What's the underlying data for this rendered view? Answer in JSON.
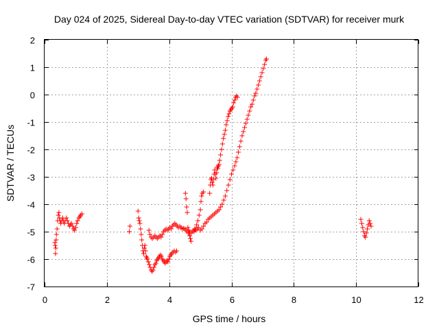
{
  "chart_data": {
    "type": "scatter",
    "title": "Day 024 of 2025, Sidereal Day-to-day VTEC variation (SDTVAR) for receiver murk",
    "xlabel": "GPS time / hours",
    "ylabel": "SDTVAR / TECUs",
    "xlim": [
      0,
      12
    ],
    "ylim": [
      -7,
      2
    ],
    "x_ticks": [
      0,
      2,
      4,
      6,
      8,
      10,
      12
    ],
    "y_ticks": [
      -7,
      -6,
      -5,
      -4,
      -3,
      -2,
      -1,
      0,
      1,
      2
    ],
    "x_tick_labels": [
      "0",
      "2",
      "4",
      "6",
      "8",
      "10",
      "12"
    ],
    "y_tick_labels": [
      "-7",
      "-6",
      "-5",
      "-4",
      "-3",
      "-2",
      "-1",
      "0",
      "1",
      "2"
    ],
    "grid": true,
    "marker": "+",
    "series": [
      {
        "name": "SDTVAR",
        "color": "#ff0000",
        "points": [
          [
            0.33,
            -5.4
          ],
          [
            0.34,
            -5.5
          ],
          [
            0.35,
            -5.8
          ],
          [
            0.36,
            -5.6
          ],
          [
            0.37,
            -5.3
          ],
          [
            0.38,
            -5.1
          ],
          [
            0.4,
            -4.9
          ],
          [
            0.42,
            -4.6
          ],
          [
            0.44,
            -4.4
          ],
          [
            0.46,
            -4.3
          ],
          [
            0.48,
            -4.5
          ],
          [
            0.5,
            -4.6
          ],
          [
            0.52,
            -4.7
          ],
          [
            0.55,
            -4.6
          ],
          [
            0.58,
            -4.5
          ],
          [
            0.6,
            -4.6
          ],
          [
            0.63,
            -4.7
          ],
          [
            0.66,
            -4.6
          ],
          [
            0.7,
            -4.5
          ],
          [
            0.73,
            -4.6
          ],
          [
            0.76,
            -4.7
          ],
          [
            0.8,
            -4.8
          ],
          [
            0.83,
            -4.75
          ],
          [
            0.86,
            -4.7
          ],
          [
            0.9,
            -4.8
          ],
          [
            0.93,
            -4.9
          ],
          [
            0.96,
            -4.95
          ],
          [
            1.0,
            -4.85
          ],
          [
            1.03,
            -4.7
          ],
          [
            1.06,
            -4.6
          ],
          [
            1.1,
            -4.5
          ],
          [
            1.13,
            -4.45
          ],
          [
            1.16,
            -4.4
          ],
          [
            1.2,
            -4.35
          ],
          [
            2.72,
            -5.0
          ],
          [
            2.74,
            -4.8
          ],
          [
            3.0,
            -4.25
          ],
          [
            3.02,
            -4.5
          ],
          [
            3.04,
            -4.6
          ],
          [
            3.06,
            -4.7
          ],
          [
            3.08,
            -4.9
          ],
          [
            3.1,
            -5.1
          ],
          [
            3.12,
            -5.3
          ],
          [
            3.14,
            -5.5
          ],
          [
            3.16,
            -5.7
          ],
          [
            3.18,
            -5.8
          ],
          [
            3.2,
            -5.6
          ],
          [
            3.22,
            -5.5
          ],
          [
            3.24,
            -5.7
          ],
          [
            3.26,
            -5.9
          ],
          [
            3.28,
            -5.95
          ],
          [
            3.3,
            -6.0
          ],
          [
            3.33,
            -6.1
          ],
          [
            3.36,
            -6.2
          ],
          [
            3.39,
            -6.3
          ],
          [
            3.42,
            -6.4
          ],
          [
            3.45,
            -6.45
          ],
          [
            3.48,
            -6.4
          ],
          [
            3.51,
            -6.3
          ],
          [
            3.54,
            -6.2
          ],
          [
            3.57,
            -6.15
          ],
          [
            3.6,
            -6.05
          ],
          [
            3.63,
            -6.0
          ],
          [
            3.66,
            -5.95
          ],
          [
            3.69,
            -5.9
          ],
          [
            3.72,
            -5.85
          ],
          [
            3.75,
            -5.9
          ],
          [
            3.78,
            -6.0
          ],
          [
            3.81,
            -6.05
          ],
          [
            3.84,
            -6.1
          ],
          [
            3.87,
            -6.15
          ],
          [
            3.9,
            -6.1
          ],
          [
            3.93,
            -6.05
          ],
          [
            3.96,
            -6.1
          ],
          [
            3.99,
            -6.0
          ],
          [
            4.02,
            -5.9
          ],
          [
            4.05,
            -5.85
          ],
          [
            4.08,
            -5.8
          ],
          [
            4.12,
            -5.75
          ],
          [
            4.16,
            -5.7
          ],
          [
            4.2,
            -5.75
          ],
          [
            4.24,
            -5.7
          ],
          [
            3.35,
            -4.95
          ],
          [
            3.38,
            -5.1
          ],
          [
            3.42,
            -5.2
          ],
          [
            3.46,
            -5.25
          ],
          [
            3.5,
            -5.2
          ],
          [
            3.54,
            -5.15
          ],
          [
            3.58,
            -5.2
          ],
          [
            3.62,
            -5.25
          ],
          [
            3.66,
            -5.2
          ],
          [
            3.7,
            -5.15
          ],
          [
            3.74,
            -5.2
          ],
          [
            3.78,
            -5.1
          ],
          [
            3.82,
            -5.0
          ],
          [
            3.86,
            -4.95
          ],
          [
            3.9,
            -4.9
          ],
          [
            3.94,
            -4.95
          ],
          [
            3.98,
            -4.9
          ],
          [
            4.02,
            -4.85
          ],
          [
            4.06,
            -4.9
          ],
          [
            4.1,
            -4.8
          ],
          [
            4.14,
            -4.75
          ],
          [
            4.18,
            -4.7
          ],
          [
            4.22,
            -4.75
          ],
          [
            4.26,
            -4.8
          ],
          [
            4.3,
            -4.85
          ],
          [
            4.34,
            -4.8
          ],
          [
            4.38,
            -4.85
          ],
          [
            4.42,
            -4.9
          ],
          [
            4.46,
            -4.88
          ],
          [
            4.5,
            -4.9
          ],
          [
            4.54,
            -4.95
          ],
          [
            4.58,
            -5.0
          ],
          [
            4.62,
            -5.05
          ],
          [
            4.66,
            -5.0
          ],
          [
            4.7,
            -5.05
          ],
          [
            4.74,
            -5.0
          ],
          [
            4.78,
            -4.95
          ],
          [
            4.82,
            -4.9
          ],
          [
            4.86,
            -4.95
          ],
          [
            4.9,
            -4.9
          ],
          [
            4.94,
            -4.85
          ],
          [
            4.6,
            -4.85
          ],
          [
            4.62,
            -4.95
          ],
          [
            4.64,
            -5.05
          ],
          [
            4.66,
            -5.15
          ],
          [
            4.68,
            -5.25
          ],
          [
            4.7,
            -5.35
          ],
          [
            4.8,
            -5.0
          ],
          [
            4.84,
            -4.9
          ],
          [
            4.88,
            -4.75
          ],
          [
            4.92,
            -4.6
          ],
          [
            4.96,
            -4.4
          ],
          [
            5.0,
            -4.2
          ],
          [
            5.02,
            -3.9
          ],
          [
            5.04,
            -3.7
          ],
          [
            5.06,
            -3.6
          ],
          [
            5.1,
            -3.55
          ],
          [
            4.52,
            -3.6
          ],
          [
            4.54,
            -3.8
          ],
          [
            4.56,
            -4.1
          ],
          [
            4.58,
            -4.3
          ],
          [
            5.3,
            -3.6
          ],
          [
            5.32,
            -3.3
          ],
          [
            5.34,
            -3.1
          ],
          [
            5.36,
            -3.05
          ],
          [
            5.38,
            -3.2
          ],
          [
            5.4,
            -3.3
          ],
          [
            5.42,
            -3.1
          ],
          [
            5.44,
            -2.9
          ],
          [
            5.46,
            -2.75
          ],
          [
            5.48,
            -2.9
          ],
          [
            5.5,
            -3.05
          ],
          [
            5.52,
            -2.85
          ],
          [
            5.54,
            -2.65
          ],
          [
            5.56,
            -2.7
          ],
          [
            5.58,
            -2.6
          ],
          [
            5.6,
            -2.55
          ],
          [
            5.62,
            -2.4
          ],
          [
            5.65,
            -2.2
          ],
          [
            5.68,
            -2.0
          ],
          [
            5.71,
            -1.8
          ],
          [
            5.74,
            -1.6
          ],
          [
            5.77,
            -1.45
          ],
          [
            5.8,
            -1.3
          ],
          [
            5.83,
            -1.1
          ],
          [
            5.86,
            -0.95
          ],
          [
            5.89,
            -0.8
          ],
          [
            5.92,
            -0.7
          ],
          [
            5.95,
            -0.6
          ],
          [
            5.98,
            -0.55
          ],
          [
            6.01,
            -0.5
          ],
          [
            6.04,
            -0.45
          ],
          [
            6.07,
            -0.3
          ],
          [
            6.1,
            -0.2
          ],
          [
            6.13,
            -0.1
          ],
          [
            6.16,
            -0.05
          ],
          [
            6.19,
            -0.1
          ],
          [
            5.0,
            -4.95
          ],
          [
            5.05,
            -4.9
          ],
          [
            5.1,
            -4.8
          ],
          [
            5.15,
            -4.7
          ],
          [
            5.2,
            -4.65
          ],
          [
            5.25,
            -4.55
          ],
          [
            5.3,
            -4.5
          ],
          [
            5.35,
            -4.45
          ],
          [
            5.4,
            -4.4
          ],
          [
            5.45,
            -4.35
          ],
          [
            5.5,
            -4.3
          ],
          [
            5.55,
            -4.25
          ],
          [
            5.6,
            -4.2
          ],
          [
            5.65,
            -4.1
          ],
          [
            5.7,
            -4.0
          ],
          [
            5.75,
            -3.85
          ],
          [
            5.8,
            -3.7
          ],
          [
            5.85,
            -3.5
          ],
          [
            5.9,
            -3.3
          ],
          [
            5.95,
            -3.1
          ],
          [
            6.0,
            -2.9
          ],
          [
            6.05,
            -2.75
          ],
          [
            6.1,
            -2.6
          ],
          [
            6.14,
            -2.45
          ],
          [
            6.18,
            -2.3
          ],
          [
            6.22,
            -2.1
          ],
          [
            6.26,
            -1.9
          ],
          [
            6.3,
            -1.7
          ],
          [
            6.34,
            -1.5
          ],
          [
            6.38,
            -1.35
          ],
          [
            6.42,
            -1.2
          ],
          [
            6.46,
            -1.05
          ],
          [
            6.5,
            -0.9
          ],
          [
            6.54,
            -0.75
          ],
          [
            6.58,
            -0.6
          ],
          [
            6.62,
            -0.45
          ],
          [
            6.66,
            -0.35
          ],
          [
            6.7,
            -0.2
          ],
          [
            6.74,
            -0.05
          ],
          [
            6.78,
            0.05
          ],
          [
            6.82,
            0.2
          ],
          [
            6.86,
            0.35
          ],
          [
            6.9,
            0.5
          ],
          [
            6.94,
            0.65
          ],
          [
            6.98,
            0.8
          ],
          [
            7.02,
            0.95
          ],
          [
            7.06,
            1.1
          ],
          [
            7.1,
            1.25
          ],
          [
            7.12,
            1.3
          ],
          [
            10.15,
            -4.55
          ],
          [
            10.18,
            -4.7
          ],
          [
            10.21,
            -4.85
          ],
          [
            10.24,
            -5.0
          ],
          [
            10.27,
            -5.15
          ],
          [
            10.3,
            -5.2
          ],
          [
            10.33,
            -5.05
          ],
          [
            10.36,
            -4.9
          ],
          [
            10.39,
            -4.75
          ],
          [
            10.42,
            -4.6
          ],
          [
            10.45,
            -4.7
          ],
          [
            10.48,
            -4.8
          ]
        ]
      }
    ]
  }
}
